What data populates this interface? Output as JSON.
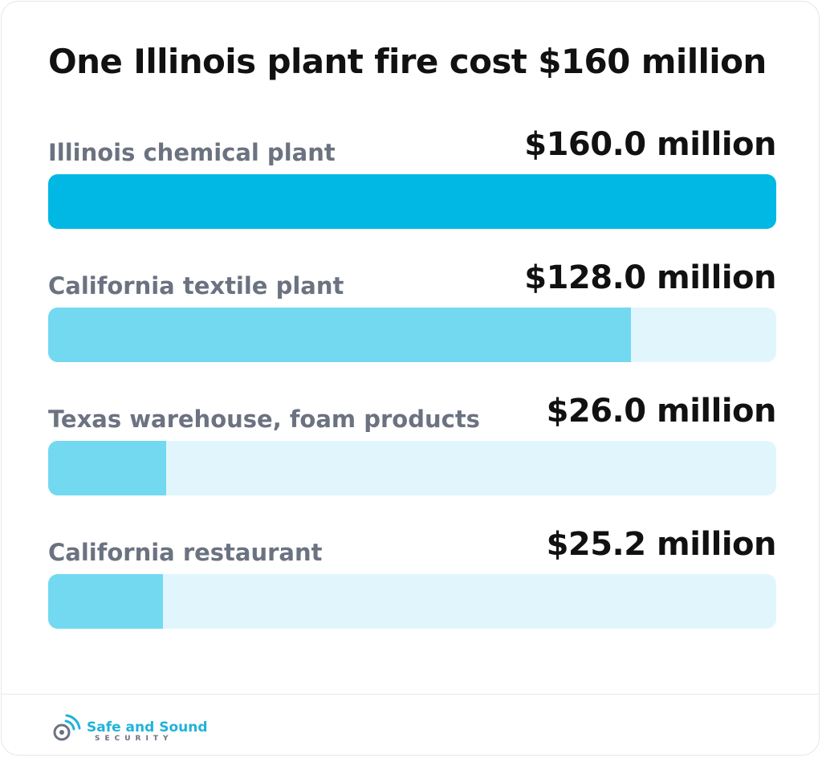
{
  "chart_data": {
    "type": "bar",
    "title": "One Illinois plant fire cost $160 million",
    "orientation": "horizontal",
    "categories": [
      "Illinois chemical plant",
      "California textile plant",
      "Texas warehouse, foam products",
      "California restaurant"
    ],
    "values": [
      160.0,
      128.0,
      26.0,
      25.2
    ],
    "value_labels": [
      "$160.0 million",
      "$128.0 million",
      "$26.0 million",
      "$25.2 million"
    ],
    "xlim": [
      0,
      160
    ],
    "grid": false,
    "colors": {
      "highlight": "#00b8e3",
      "bar": "#72d9f0",
      "track": "#e1f6fc"
    }
  },
  "brand": {
    "name": "Safe and Sound",
    "sub": "SECURITY",
    "icon": "wifi-shield-logo-icon"
  }
}
